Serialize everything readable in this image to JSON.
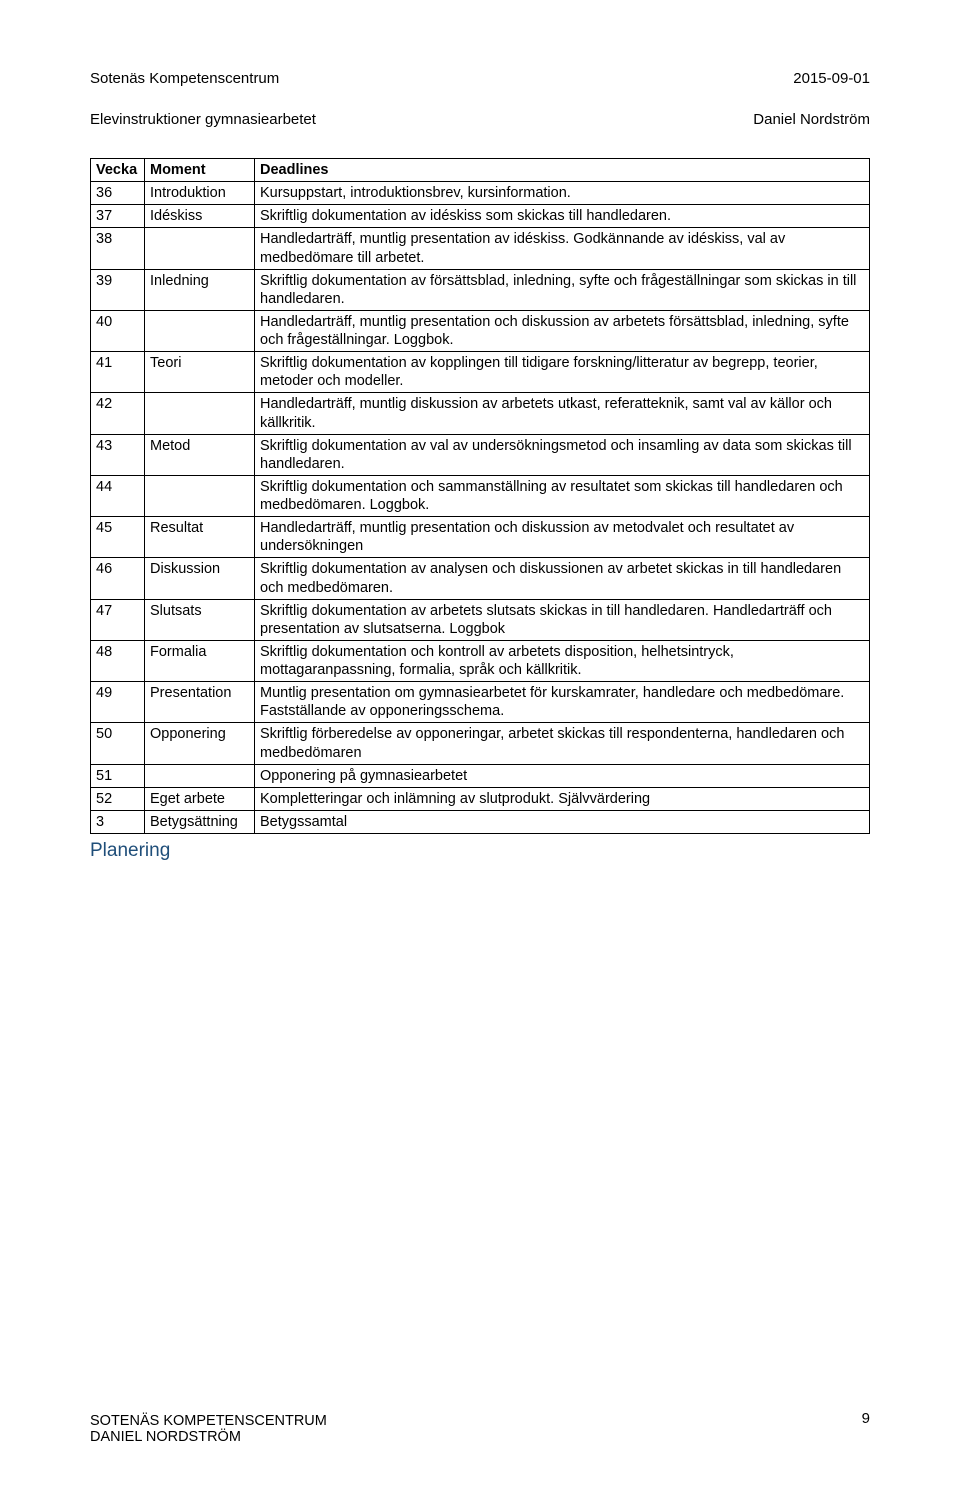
{
  "header": {
    "org": "Sotenäs Kompetenscentrum",
    "date": "2015-09-01",
    "subtitle": "Elevinstruktioner gymnasiearbetet",
    "author": "Daniel Nordström"
  },
  "table": {
    "columns": [
      "Vecka",
      "Moment",
      "Deadlines"
    ],
    "rows": [
      [
        "36",
        "Introduktion",
        "Kursuppstart, introduktionsbrev, kursinformation."
      ],
      [
        "37",
        "Idéskiss",
        "Skriftlig dokumentation av idéskiss som skickas till handledaren."
      ],
      [
        "38",
        "",
        "Handledarträff, muntlig presentation av idéskiss. Godkännande av idéskiss, val av medbedömare till arbetet."
      ],
      [
        "39",
        "Inledning",
        "Skriftlig dokumentation av försättsblad, inledning, syfte och frågeställningar som skickas in till handledaren."
      ],
      [
        "40",
        "",
        "Handledarträff, muntlig presentation och diskussion av arbetets försättsblad, inledning, syfte och frågeställningar. Loggbok."
      ],
      [
        "41",
        "Teori",
        "Skriftlig dokumentation av kopplingen till tidigare forskning/litteratur av begrepp, teorier, metoder och modeller."
      ],
      [
        "42",
        "",
        "Handledarträff, muntlig diskussion av arbetets utkast, referatteknik, samt val av källor och källkritik."
      ],
      [
        "43",
        "Metod",
        "Skriftlig dokumentation av val av undersökningsmetod och insamling av data som skickas till handledaren."
      ],
      [
        "44",
        "",
        "Skriftlig dokumentation och sammanställning av resultatet som skickas till handledaren och medbedömaren. Loggbok."
      ],
      [
        "45",
        "Resultat",
        "Handledarträff, muntlig presentation och diskussion av metodvalet och resultatet av undersökningen"
      ],
      [
        "46",
        "Diskussion",
        "Skriftlig dokumentation av analysen och diskussionen av arbetet skickas in till handledaren och medbedömaren."
      ],
      [
        "47",
        "Slutsats",
        "Skriftlig dokumentation av arbetets slutsats skickas in till handledaren. Handledarträff och presentation av slutsatserna. Loggbok"
      ],
      [
        "48",
        "Formalia",
        "Skriftlig dokumentation och kontroll av arbetets disposition, helhetsintryck, mottagaranpassning, formalia, språk och källkritik."
      ],
      [
        "49",
        "Presentation",
        "Muntlig presentation om gymnasiearbetet för kurskamrater, handledare och medbedömare. Fastställande av opponeringsschema."
      ],
      [
        "50",
        "Opponering",
        "Skriftlig förberedelse av opponeringar, arbetet skickas till respondenterna, handledaren och medbedömaren"
      ],
      [
        "51",
        "",
        "Opponering på gymnasiearbetet"
      ],
      [
        "52",
        "Eget arbete",
        "Kompletteringar och inlämning av slutprodukt. Självvärdering"
      ],
      [
        "3",
        "Betygsättning",
        "Betygssamtal"
      ]
    ]
  },
  "section_heading": "Planering",
  "footer": {
    "line1": "SOTENÄS KOMPETENSCENTRUM",
    "line2": "DANIEL NORDSTRÖM",
    "page_number": "9"
  },
  "style": {
    "heading_color": "#1f4e79",
    "text_color": "#000000",
    "border_color": "#000000",
    "background": "#ffffff",
    "body_fontsize": 14.5,
    "heading_fontsize": 19
  }
}
